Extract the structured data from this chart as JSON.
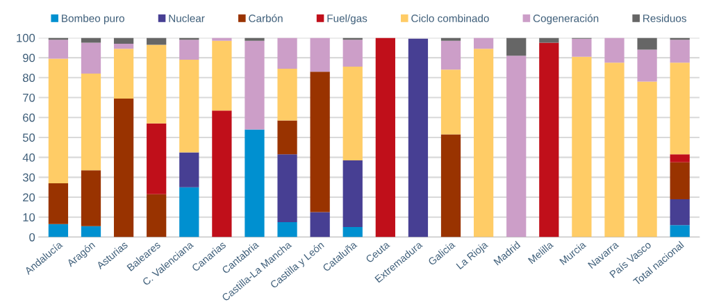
{
  "chart_data": {
    "type": "bar",
    "stacked": true,
    "categories": [
      "Andalucía",
      "Aragón",
      "Asturias",
      "Baleares",
      "C. Valenciana",
      "Canarias",
      "Cantabria",
      "Castilla-La Mancha",
      "Castilla y León",
      "Cataluña",
      "Ceuta",
      "Extremadura",
      "Galicia",
      "La Rioja",
      "Madrid",
      "Melilla",
      "Murcia",
      "Navarra",
      "País Vasco",
      "Total nacional"
    ],
    "series": [
      {
        "name": "Bombeo puro",
        "color": "#0090d0",
        "values": [
          6.5,
          5.5,
          null,
          null,
          25,
          null,
          54,
          7.5,
          null,
          5,
          null,
          null,
          null,
          null,
          null,
          null,
          null,
          null,
          null,
          6
        ]
      },
      {
        "name": "Nuclear",
        "color": "#473f93",
        "values": [
          null,
          null,
          null,
          null,
          17.5,
          null,
          null,
          34,
          12.5,
          33.5,
          null,
          99.5,
          null,
          null,
          null,
          null,
          null,
          null,
          null,
          13
        ]
      },
      {
        "name": "Carbón",
        "color": "#993300",
        "values": [
          20.5,
          28,
          69.5,
          21.5,
          null,
          null,
          null,
          17,
          70.5,
          null,
          null,
          null,
          51.5,
          null,
          null,
          null,
          null,
          null,
          null,
          18.5
        ]
      },
      {
        "name": "Fuel/gas",
        "color": "#c00f1a",
        "values": [
          null,
          null,
          null,
          35.5,
          null,
          63.5,
          null,
          null,
          null,
          null,
          100,
          null,
          null,
          null,
          null,
          97.5,
          null,
          null,
          null,
          4
        ]
      },
      {
        "name": "Ciclo combinado",
        "color": "#ffcc66",
        "values": [
          62.5,
          48.5,
          25,
          39.5,
          46.5,
          35,
          null,
          26,
          null,
          47,
          null,
          null,
          32.5,
          94.5,
          null,
          null,
          90.5,
          87.5,
          78,
          46
        ]
      },
      {
        "name": "Cogeneración",
        "color": "#cc9ec8",
        "values": [
          9.5,
          15.5,
          2.5,
          null,
          10,
          1.5,
          44.5,
          15.5,
          17,
          13.5,
          null,
          null,
          14.5,
          5.5,
          91,
          null,
          9,
          12.5,
          16,
          11.5
        ]
      },
      {
        "name": "Residuos",
        "color": "#666666",
        "values": [
          1,
          2.5,
          3,
          3.5,
          1,
          null,
          1.5,
          null,
          null,
          1,
          null,
          null,
          1.5,
          null,
          9,
          2.5,
          0.5,
          null,
          6,
          1
        ]
      }
    ],
    "ylim": [
      0,
      100
    ],
    "yticks": [
      0,
      10,
      20,
      30,
      40,
      50,
      60,
      70,
      80,
      90,
      100
    ],
    "grid": "y",
    "legend": "top"
  }
}
